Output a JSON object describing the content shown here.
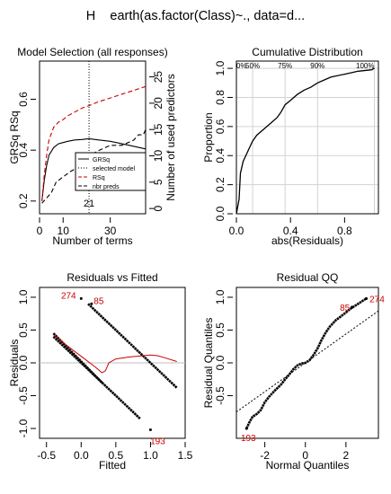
{
  "main_title": "H    earth(as.factor(Class)~., data=d...",
  "colors": {
    "rsq": "#cc0000",
    "label_red": "#cc0000",
    "frame": "#000000",
    "grid": "#d3d3d3",
    "zero_line": "#bfbfbf"
  },
  "chart_data": [
    {
      "type": "line",
      "title": "Model Selection (all responses)",
      "xlabel": "Number of terms",
      "ylabel_left": "GRSq  RSq",
      "ylabel_right": "Number of used predictors",
      "xlim": [
        0,
        45
      ],
      "ylim": [
        0.15,
        0.75
      ],
      "y2lim": [
        -1,
        28
      ],
      "x_ticks": [
        0,
        10,
        30
      ],
      "y_ticks": [
        0.2,
        0.4,
        0.6
      ],
      "y2_ticks": [
        0,
        5,
        10,
        15,
        20,
        25
      ],
      "selected_terms": 21,
      "selected_label": "21",
      "series": [
        {
          "name": "GRSq",
          "axis": "left",
          "style": "solid-black",
          "x": [
            1,
            2,
            3,
            4,
            6,
            8,
            10,
            12,
            15,
            18,
            21,
            25,
            30,
            35,
            40,
            45
          ],
          "y": [
            0.2,
            0.28,
            0.34,
            0.38,
            0.41,
            0.425,
            0.43,
            0.435,
            0.44,
            0.442,
            0.445,
            0.44,
            0.435,
            0.425,
            0.415,
            0.405
          ]
        },
        {
          "name": "RSq",
          "axis": "left",
          "style": "dashed-red",
          "x": [
            1,
            2,
            3,
            4,
            6,
            8,
            10,
            12,
            15,
            18,
            21,
            25,
            30,
            35,
            40,
            45
          ],
          "y": [
            0.2,
            0.3,
            0.38,
            0.44,
            0.49,
            0.51,
            0.52,
            0.535,
            0.55,
            0.565,
            0.575,
            0.59,
            0.605,
            0.62,
            0.635,
            0.65
          ]
        },
        {
          "name": "nbr preds",
          "axis": "right",
          "style": "dashed-black",
          "x": [
            1,
            3,
            5,
            7,
            10,
            13,
            17,
            21,
            25,
            30,
            35,
            40,
            42,
            44,
            45
          ],
          "y": [
            1,
            2,
            3,
            5,
            6,
            7,
            8,
            10,
            11,
            12,
            12,
            13,
            14,
            14,
            15
          ]
        }
      ],
      "legend": {
        "position": "bottom-right",
        "entries": [
          "GRSq",
          "selected model",
          "RSq",
          "nbr preds"
        ]
      }
    },
    {
      "type": "line",
      "title": "Cumulative Distribution",
      "xlabel": "abs(Residuals)",
      "ylabel": "Proportion",
      "xlim": [
        0,
        1.05
      ],
      "ylim": [
        0,
        1.05
      ],
      "x_ticks": [
        0.0,
        0.4,
        0.8
      ],
      "y_ticks": [
        0.0,
        0.2,
        0.4,
        0.6,
        0.8,
        1.0
      ],
      "percentile_labels": [
        {
          "label": "0%",
          "x": 0.0
        },
        {
          "label": "50%",
          "x": 0.12
        },
        {
          "label": "75%",
          "x": 0.36
        },
        {
          "label": "90%",
          "x": 0.6
        },
        {
          "label": "100%",
          "x": 1.02
        }
      ],
      "grid": true,
      "x": [
        0.0,
        0.01,
        0.02,
        0.03,
        0.05,
        0.08,
        0.1,
        0.12,
        0.15,
        0.2,
        0.25,
        0.3,
        0.33,
        0.36,
        0.4,
        0.45,
        0.5,
        0.55,
        0.6,
        0.65,
        0.7,
        0.8,
        0.9,
        1.0,
        1.02
      ],
      "y": [
        0.0,
        0.05,
        0.1,
        0.28,
        0.36,
        0.42,
        0.46,
        0.5,
        0.54,
        0.58,
        0.62,
        0.66,
        0.7,
        0.75,
        0.78,
        0.82,
        0.85,
        0.87,
        0.9,
        0.92,
        0.94,
        0.96,
        0.98,
        0.99,
        1.0
      ]
    },
    {
      "type": "scatter",
      "title": "Residuals vs Fitted",
      "xlabel": "Fitted",
      "ylabel": "Residuals",
      "xlim": [
        -0.6,
        1.5
      ],
      "ylim": [
        -1.15,
        1.15
      ],
      "x_ticks": [
        -0.5,
        0.0,
        0.5,
        1.0,
        1.5
      ],
      "y_ticks": [
        -1.0,
        -0.5,
        0.0,
        0.5,
        1.0
      ],
      "bands": [
        {
          "fitted": [
            -0.4,
            0.85
          ],
          "residual": [
            0.4,
            -0.85
          ]
        },
        {
          "fitted": [
            0.1,
            1.38
          ],
          "residual": [
            0.9,
            -0.38
          ]
        },
        {
          "fitted": [
            -0.4,
            0.3
          ],
          "residual": [
            0.45,
            -0.3
          ]
        }
      ],
      "smooth": {
        "x": [
          -0.4,
          -0.2,
          0.0,
          0.2,
          0.3,
          0.35,
          0.4,
          0.5,
          0.7,
          0.9,
          1.0,
          1.1,
          1.2,
          1.38
        ],
        "y": [
          0.43,
          0.26,
          0.1,
          -0.06,
          -0.15,
          -0.12,
          0.0,
          0.06,
          0.09,
          0.11,
          0.12,
          0.11,
          0.08,
          0.02
        ]
      },
      "labeled_points": [
        {
          "label": "274",
          "x": 0.0,
          "y": 0.98
        },
        {
          "label": "85",
          "x": 0.15,
          "y": 0.9
        },
        {
          "label": "193",
          "x": 1.0,
          "y": -1.02
        }
      ]
    },
    {
      "type": "scatter",
      "title": "Residual QQ",
      "xlabel": "Normal Quantiles",
      "ylabel": "Residual Quantiles",
      "xlim": [
        -3.4,
        3.6
      ],
      "ylim": [
        -1.15,
        1.15
      ],
      "x_ticks": [
        -2,
        0,
        2
      ],
      "y_ticks": [
        -0.5,
        0.0,
        0.5,
        1.0
      ],
      "qq_x": [
        -2.9,
        -2.75,
        -2.6,
        -2.4,
        -2.2,
        -2.0,
        -1.8,
        -1.5,
        -1.2,
        -1.0,
        -0.8,
        -0.6,
        -0.4,
        -0.2,
        0.0,
        0.2,
        0.4,
        0.6,
        0.8,
        1.0,
        1.2,
        1.5,
        1.8,
        2.0,
        2.2,
        2.4,
        2.6,
        2.8,
        3.0
      ],
      "qq_y": [
        -1.0,
        -0.9,
        -0.82,
        -0.78,
        -0.72,
        -0.6,
        -0.52,
        -0.42,
        -0.33,
        -0.25,
        -0.18,
        -0.1,
        -0.04,
        -0.01,
        0.0,
        0.04,
        0.12,
        0.22,
        0.35,
        0.46,
        0.55,
        0.65,
        0.72,
        0.77,
        0.82,
        0.86,
        0.9,
        0.94,
        0.98
      ],
      "reference_line": {
        "slope": 0.22,
        "intercept": 0.0
      },
      "labeled_points": [
        {
          "label": "193",
          "x": -2.9,
          "y": -1.0
        },
        {
          "label": "85",
          "x": 2.3,
          "y": 0.85
        },
        {
          "label": "274",
          "x": 3.0,
          "y": 0.98
        }
      ]
    }
  ]
}
